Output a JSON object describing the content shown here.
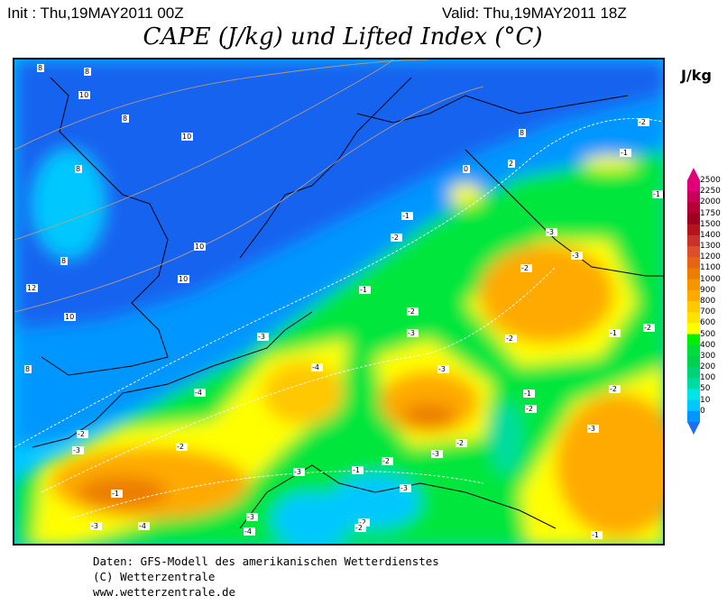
{
  "header": {
    "init": "Init : Thu,19MAY2011 00Z",
    "valid": "Valid: Thu,19MAY2011 18Z",
    "title": "CAPE (J/kg) und Lifted Index (°C)"
  },
  "legend": {
    "unit": "J/kg",
    "levels": [
      "2500",
      "2250",
      "2000",
      "1750",
      "1500",
      "1400",
      "1300",
      "1200",
      "1100",
      "1000",
      "900",
      "800",
      "700",
      "600",
      "500",
      "400",
      "300",
      "200",
      "100",
      "50",
      "10",
      "0"
    ],
    "colors": [
      "#e0007a",
      "#c8005a",
      "#b40032",
      "#a00020",
      "#b4141e",
      "#c83228",
      "#dc5028",
      "#e66414",
      "#eb7d00",
      "#f59600",
      "#ffaa00",
      "#ffc800",
      "#ffe100",
      "#ffff00",
      "#00f000",
      "#00dc3c",
      "#00d250",
      "#00d278",
      "#00dca0",
      "#00e6e6",
      "#00c8ff",
      "#0096ff"
    ],
    "below_color": "#1e6ef0"
  },
  "map": {
    "colors": {
      "deep_blue": "#1464f0",
      "blue": "#0096ff",
      "light_blue": "#00c8ff",
      "cyan": "#00e6e6",
      "teal": "#00dca0",
      "green": "#00e63c",
      "yellow": "#ffff00",
      "light_orange": "#ffc800",
      "orange": "#ffaa00",
      "dark_orange": "#eb7d00"
    },
    "lifted_index_labels": [
      "8",
      "8",
      "10",
      "8",
      "10",
      "8",
      "8",
      "10",
      "10",
      "12",
      "10",
      "8",
      "8",
      "2",
      "0",
      "-1",
      "-2",
      "-3",
      "-1",
      "-2",
      "-1",
      "-2",
      "-3",
      "-1",
      "-2",
      "-3",
      "-2",
      "-3",
      "-4",
      "-3",
      "-4",
      "-2",
      "-3",
      "-2",
      "-1",
      "-3",
      "-4",
      "-3",
      "-4",
      "-3",
      "-1",
      "-2",
      "-3",
      "-2",
      "-1",
      "-2",
      "-2",
      "-3",
      "-2",
      "-1",
      "-2",
      "-2",
      "-3",
      "-1"
    ]
  },
  "footer": {
    "line1": "Daten: GFS-Modell des amerikanischen Wetterdienstes",
    "line2": "(C) Wetterzentrale",
    "line3": "www.wetterzentrale.de"
  }
}
